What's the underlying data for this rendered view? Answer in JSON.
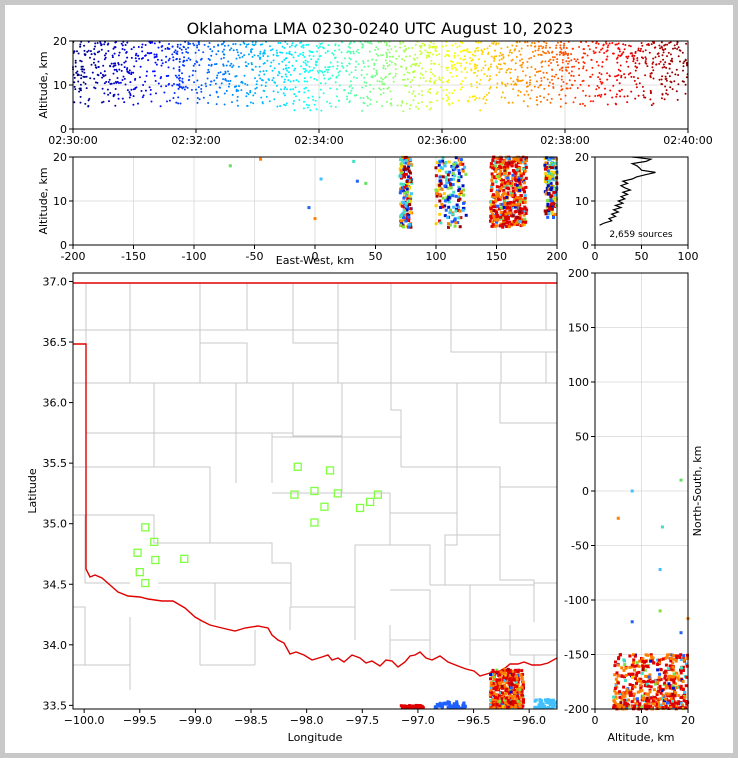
{
  "chart_data": [
    {
      "id": "time_altitude",
      "type": "scatter",
      "title": "Oklahoma LMA 0230-0240 UTC August 10, 2023",
      "xlabel": "",
      "ylabel": "Altitude, km",
      "x_tick_labels": [
        "02:30:00",
        "02:32:00",
        "02:34:00",
        "02:36:00",
        "02:38:00",
        "02:40:00"
      ],
      "x_range": [
        "02:30:00",
        "02:40:00"
      ],
      "ylim": [
        0,
        20
      ],
      "y_ticks": [
        0,
        10,
        20
      ],
      "grid": true,
      "color_encoding": "time (blue early to red late)",
      "point_bands": [
        {
          "t_start": "02:30:00",
          "t_end": "02:31:30",
          "alt_range": [
            5,
            20
          ]
        },
        {
          "t_start": "02:31:30",
          "t_end": "02:33:30",
          "alt_range": [
            5,
            20
          ]
        },
        {
          "t_start": "02:33:30",
          "t_end": "02:35:30",
          "alt_range": [
            4,
            20
          ]
        },
        {
          "t_start": "02:35:30",
          "t_end": "02:37:30",
          "alt_range": [
            4,
            20
          ]
        },
        {
          "t_start": "02:37:30",
          "t_end": "02:40:00",
          "alt_range": [
            5,
            20
          ]
        }
      ]
    },
    {
      "id": "ew_altitude",
      "type": "scatter",
      "xlabel": "East-West, km",
      "ylabel": "Altitude, km",
      "xlim": [
        -200,
        200
      ],
      "x_ticks": [
        -200,
        -150,
        -100,
        -50,
        0,
        50,
        100,
        150,
        200
      ],
      "ylim": [
        0,
        20
      ],
      "y_ticks": [
        0,
        10,
        20
      ],
      "grid": true,
      "clusters": [
        {
          "x_range": [
            70,
            80
          ],
          "alt_range": [
            4,
            20
          ],
          "color": "#e00000"
        },
        {
          "x_range": [
            100,
            125
          ],
          "alt_range": [
            4,
            20
          ],
          "color": "#40c0ff"
        },
        {
          "x_range": [
            145,
            175
          ],
          "alt_range": [
            4,
            20
          ],
          "color": "#e00000"
        },
        {
          "x_range": [
            190,
            200
          ],
          "alt_range": [
            6,
            20
          ],
          "color": "#2060ff"
        }
      ],
      "isolated_points": [
        {
          "x": -70,
          "y": 18,
          "color": "#60e060"
        },
        {
          "x": -45,
          "y": 19.5,
          "color": "#ff8000"
        },
        {
          "x": 5,
          "y": 15,
          "color": "#40c0ff"
        },
        {
          "x": -5,
          "y": 8.5,
          "color": "#2060ff"
        },
        {
          "x": 0,
          "y": 6,
          "color": "#ff8000"
        },
        {
          "x": 32,
          "y": 19,
          "color": "#40e0c0"
        },
        {
          "x": 35,
          "y": 14.5,
          "color": "#2060ff"
        },
        {
          "x": 42,
          "y": 14,
          "color": "#60e060"
        }
      ]
    },
    {
      "id": "altitude_histogram",
      "type": "line",
      "xlim": [
        0,
        100
      ],
      "x_ticks": [
        0,
        50,
        100
      ],
      "ylim": [
        0,
        20
      ],
      "y_ticks": [
        0,
        10,
        20
      ],
      "annotation": "2,659 sources",
      "profile": [
        [
          5,
          4.5
        ],
        [
          10,
          5
        ],
        [
          18,
          5.5
        ],
        [
          15,
          6
        ],
        [
          22,
          6.5
        ],
        [
          18,
          7
        ],
        [
          25,
          7.5
        ],
        [
          20,
          8
        ],
        [
          28,
          8.5
        ],
        [
          22,
          9
        ],
        [
          30,
          9.5
        ],
        [
          25,
          10
        ],
        [
          32,
          10.5
        ],
        [
          28,
          11
        ],
        [
          35,
          11.5
        ],
        [
          30,
          12
        ],
        [
          38,
          12.5
        ],
        [
          32,
          13
        ],
        [
          28,
          13.5
        ],
        [
          35,
          14
        ],
        [
          30,
          14.5
        ],
        [
          40,
          15
        ],
        [
          45,
          15.5
        ],
        [
          55,
          16
        ],
        [
          65,
          16.5
        ],
        [
          50,
          17
        ],
        [
          48,
          17.5
        ],
        [
          45,
          18
        ],
        [
          40,
          18.5
        ],
        [
          55,
          19
        ],
        [
          60,
          19.5
        ],
        [
          40,
          20
        ]
      ]
    },
    {
      "id": "plan_view",
      "type": "scatter",
      "xlabel": "Longitude",
      "ylabel": "Latitude",
      "xlim": [
        -100.1,
        -95.75
      ],
      "x_ticks": [
        -100.0,
        -99.5,
        -99.0,
        -98.5,
        -98.0,
        -97.5,
        -97.0,
        -96.5,
        -96.0
      ],
      "x_tick_labels": [
        "−100.0",
        "−99.5",
        "−99.0",
        "−98.5",
        "−98.0",
        "−97.5",
        "−97.0",
        "−96.5",
        "−96.0"
      ],
      "ylim": [
        33.47,
        37.07
      ],
      "y_ticks": [
        33.5,
        34.0,
        34.5,
        35.0,
        35.5,
        36.0,
        36.5,
        37.0
      ],
      "y_tick_labels": [
        "33.5",
        "34.0",
        "34.5",
        "35.0",
        "35.5",
        "36.0",
        "36.5",
        "37.0"
      ],
      "stations": [
        [
          -98.08,
          35.47
        ],
        [
          -97.79,
          35.44
        ],
        [
          -98.11,
          35.24
        ],
        [
          -97.93,
          35.27
        ],
        [
          -97.72,
          35.25
        ],
        [
          -97.84,
          35.14
        ],
        [
          -97.36,
          35.24
        ],
        [
          -97.43,
          35.18
        ],
        [
          -97.52,
          35.13
        ],
        [
          -97.93,
          35.01
        ],
        [
          -99.45,
          34.97
        ],
        [
          -99.37,
          34.85
        ],
        [
          -99.52,
          34.76
        ],
        [
          -99.36,
          34.7
        ],
        [
          -99.1,
          34.71
        ],
        [
          -99.5,
          34.6
        ],
        [
          -99.45,
          34.51
        ]
      ],
      "station_color": "#80ff40",
      "clusters": [
        {
          "lon_range": [
            -96.35,
            -96.05
          ],
          "lat_range": [
            33.47,
            33.8
          ],
          "color": "#e00000"
        },
        {
          "lon_range": [
            -97.15,
            -96.95
          ],
          "lat_range": [
            33.47,
            33.5
          ],
          "color": "#e00000"
        },
        {
          "lon_range": [
            -96.85,
            -96.55
          ],
          "lat_range": [
            33.47,
            33.53
          ],
          "color": "#2060ff"
        },
        {
          "lon_range": [
            -95.95,
            -95.75
          ],
          "lat_range": [
            33.47,
            33.55
          ],
          "color": "#40c0ff"
        }
      ]
    },
    {
      "id": "ns_altitude",
      "type": "scatter",
      "xlabel": "Altitude, km",
      "ylabel": "North-South, km",
      "xlim": [
        0,
        20
      ],
      "x_ticks": [
        0,
        10,
        20
      ],
      "ylim": [
        -200,
        200
      ],
      "y_ticks": [
        -200,
        -150,
        -100,
        -50,
        0,
        50,
        100,
        150,
        200
      ],
      "cluster": {
        "alt_range": [
          4,
          20
        ],
        "ns_range": [
          -200,
          -150
        ],
        "color": "#e00000"
      },
      "isolated_points": [
        {
          "x": 8,
          "y": 0,
          "color": "#40c0ff"
        },
        {
          "x": 18.5,
          "y": 10,
          "color": "#60e060"
        },
        {
          "x": 5,
          "y": -25,
          "color": "#ff8000"
        },
        {
          "x": 14.5,
          "y": -33,
          "color": "#40e0c0"
        },
        {
          "x": 14,
          "y": -72,
          "color": "#40c0ff"
        },
        {
          "x": 14,
          "y": -110,
          "color": "#80e040"
        },
        {
          "x": 8,
          "y": -120,
          "color": "#2060ff"
        },
        {
          "x": 20,
          "y": -117,
          "color": "#ff8000"
        },
        {
          "x": 18.5,
          "y": -130,
          "color": "#2060ff"
        }
      ]
    }
  ]
}
